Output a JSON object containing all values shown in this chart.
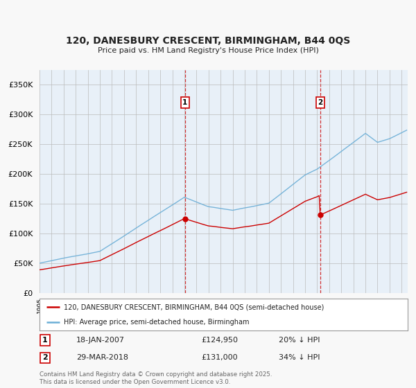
{
  "title_line1": "120, DANESBURY CRESCENT, BIRMINGHAM, B44 0QS",
  "title_line2": "Price paid vs. HM Land Registry's House Price Index (HPI)",
  "bg_color": "#f8f8f8",
  "plot_bg_color": "#e8f0f8",
  "hpi_color": "#6baed6",
  "price_color": "#cc0000",
  "vline_color": "#cc0000",
  "marker1_label": "18-JAN-2007",
  "marker1_price": "£124,950",
  "marker1_note": "20% ↓ HPI",
  "marker2_label": "29-MAR-2018",
  "marker2_price": "£131,000",
  "marker2_note": "34% ↓ HPI",
  "legend_entry1": "120, DANESBURY CRESCENT, BIRMINGHAM, B44 0QS (semi-detached house)",
  "legend_entry2": "HPI: Average price, semi-detached house, Birmingham",
  "footer": "Contains HM Land Registry data © Crown copyright and database right 2025.\nThis data is licensed under the Open Government Licence v3.0.",
  "ylim": [
    0,
    375000
  ],
  "yticks": [
    0,
    50000,
    100000,
    150000,
    200000,
    250000,
    300000,
    350000
  ],
  "xlim_start": 1995,
  "xlim_end": 2025.5,
  "sale1_year": 2007.05,
  "sale1_price": 124950,
  "sale2_year": 2018.25,
  "sale2_price": 131000
}
